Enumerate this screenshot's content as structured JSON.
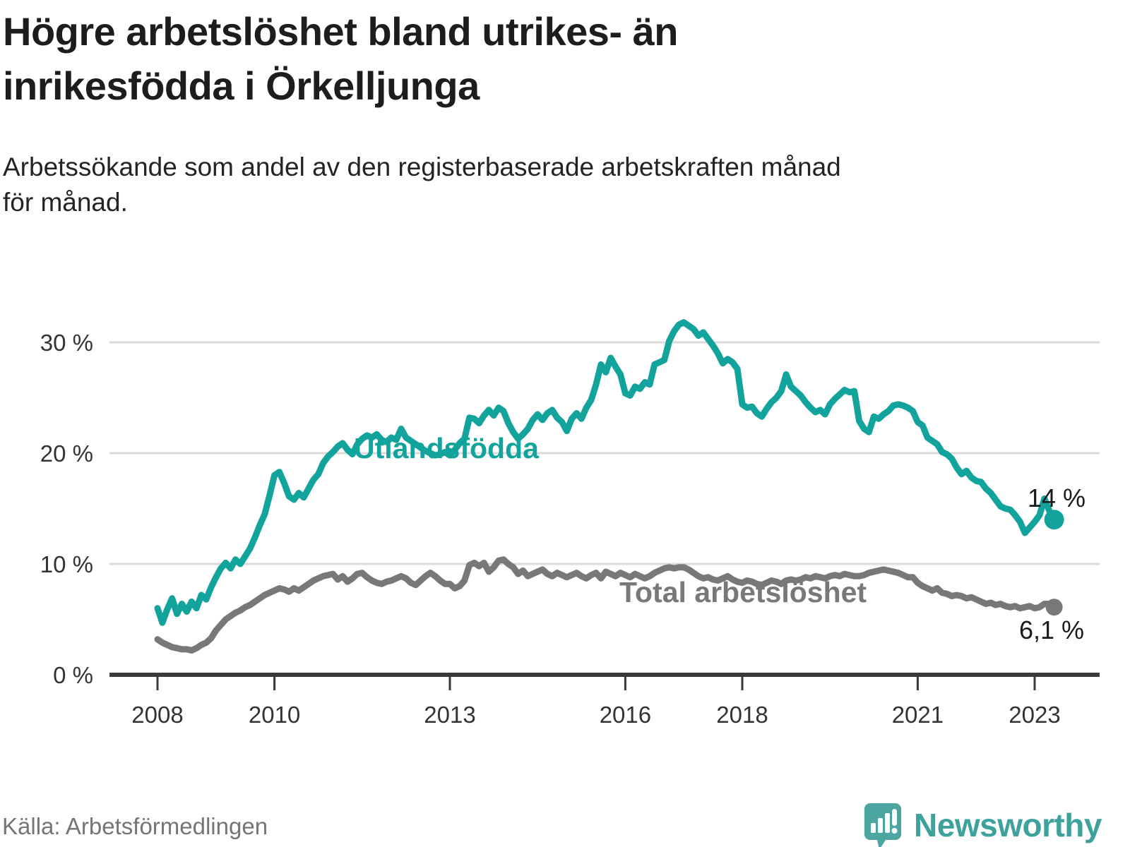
{
  "title": {
    "lines": [
      "Högre arbetslöshet bland utrikes- än",
      "inrikesfödda i Örkelljunga"
    ]
  },
  "subtitle": {
    "lines": [
      "Arbetssökande som andel av den registerbaserade arbetskraften månad",
      "för månad."
    ]
  },
  "footer": {
    "source": "Källa: Arbetsförmedlingen"
  },
  "brand": {
    "name": "Newsworthy",
    "icon": "map-pin-bar-chart-icon",
    "color": "#3da29b"
  },
  "chart_data": {
    "type": "line",
    "title": "Högre arbetslöshet bland utrikes- än inrikesfödda i Örkelljunga",
    "xlabel": "",
    "ylabel": "Arbetssökande som andel av den registerbaserade arbetskraften",
    "x_axis": {
      "ticks": [
        2008,
        2010,
        2013,
        2016,
        2018,
        2021,
        2023
      ]
    },
    "y_axis": {
      "tick_labels": [
        "0 %",
        "10 %",
        "20 %",
        "30 %"
      ],
      "tick_values": [
        0,
        10,
        20,
        30
      ],
      "ylim": [
        0,
        33.5
      ],
      "grid": true
    },
    "start_year": 2008,
    "frequency": "monthly",
    "series": [
      {
        "name": "Utlandsfödda",
        "color": "#11a39c",
        "end_label": "14 %",
        "values": [
          6.0,
          4.7,
          5.9,
          6.9,
          5.5,
          6.4,
          5.7,
          6.6,
          6.0,
          7.2,
          6.8,
          7.9,
          8.8,
          9.6,
          10.1,
          9.6,
          10.4,
          10.0,
          10.7,
          11.4,
          12.4,
          13.5,
          14.5,
          16.2,
          18.0,
          18.3,
          17.3,
          16.1,
          15.8,
          16.4,
          16.0,
          16.8,
          17.6,
          18.1,
          19.1,
          19.7,
          20.1,
          20.6,
          20.9,
          20.3,
          19.9,
          20.8,
          21.3,
          21.6,
          21.4,
          21.7,
          21.2,
          21.0,
          21.4,
          21.2,
          22.2,
          21.4,
          21.1,
          20.8,
          20.5,
          20.2,
          20.0,
          19.8,
          19.9,
          20.1,
          19.8,
          20.3,
          20.9,
          21.3,
          23.2,
          23.1,
          22.7,
          23.4,
          23.9,
          23.4,
          24.1,
          23.8,
          22.7,
          21.9,
          21.3,
          21.7,
          22.2,
          23.0,
          23.5,
          23.0,
          23.6,
          23.9,
          23.2,
          22.8,
          22.0,
          23.1,
          23.6,
          23.1,
          24.1,
          24.8,
          26.2,
          28.0,
          27.3,
          28.6,
          27.8,
          27.1,
          25.4,
          25.2,
          26.0,
          25.8,
          26.4,
          26.2,
          28.0,
          28.2,
          28.4,
          30.1,
          31.0,
          31.6,
          31.8,
          31.5,
          31.2,
          30.6,
          30.9,
          30.3,
          29.7,
          29.0,
          28.1,
          28.5,
          28.2,
          27.6,
          24.4,
          24.1,
          24.2,
          23.6,
          23.3,
          24.0,
          24.6,
          25.0,
          25.6,
          27.1,
          26.0,
          25.6,
          25.2,
          24.6,
          24.1,
          23.7,
          23.9,
          23.5,
          24.4,
          24.9,
          25.3,
          25.7,
          25.5,
          25.6,
          22.9,
          22.2,
          21.9,
          23.3,
          23.1,
          23.5,
          23.8,
          24.3,
          24.4,
          24.3,
          24.1,
          23.8,
          22.8,
          22.5,
          21.4,
          21.1,
          20.8,
          20.1,
          19.9,
          19.5,
          18.7,
          18.1,
          18.4,
          17.8,
          17.5,
          17.4,
          16.8,
          16.4,
          15.8,
          15.2,
          15.0,
          14.9,
          14.4,
          13.8,
          12.8,
          13.3,
          13.8,
          14.4,
          15.9,
          14.8,
          14.0
        ]
      },
      {
        "name": "Total arbetslöshet",
        "color": "#77787a",
        "end_label": "6,1 %",
        "values": [
          3.2,
          2.9,
          2.7,
          2.5,
          2.4,
          2.3,
          2.3,
          2.2,
          2.4,
          2.7,
          2.9,
          3.3,
          4.0,
          4.5,
          5.0,
          5.3,
          5.6,
          5.8,
          6.1,
          6.3,
          6.6,
          6.9,
          7.2,
          7.4,
          7.6,
          7.8,
          7.7,
          7.5,
          7.8,
          7.6,
          7.9,
          8.2,
          8.5,
          8.7,
          8.9,
          9.0,
          9.1,
          8.6,
          8.9,
          8.4,
          8.7,
          9.1,
          9.2,
          8.8,
          8.5,
          8.3,
          8.2,
          8.4,
          8.5,
          8.7,
          8.9,
          8.7,
          8.3,
          8.1,
          8.5,
          8.9,
          9.2,
          8.9,
          8.5,
          8.2,
          8.2,
          7.8,
          8.0,
          8.5,
          9.9,
          10.1,
          9.8,
          10.1,
          9.3,
          9.7,
          10.3,
          10.4,
          10.0,
          9.7,
          9.1,
          9.4,
          8.9,
          9.1,
          9.3,
          9.5,
          9.1,
          8.9,
          9.2,
          9.0,
          8.8,
          9.0,
          9.2,
          8.9,
          8.7,
          9.0,
          9.2,
          8.7,
          9.3,
          9.1,
          8.9,
          9.2,
          9.0,
          8.8,
          9.1,
          8.9,
          8.7,
          8.9,
          9.2,
          9.4,
          9.6,
          9.7,
          9.6,
          9.7,
          9.7,
          9.5,
          9.2,
          8.9,
          8.7,
          8.8,
          8.6,
          8.5,
          8.7,
          8.9,
          8.6,
          8.4,
          8.3,
          8.5,
          8.4,
          8.2,
          8.1,
          8.3,
          8.5,
          8.4,
          8.2,
          8.5,
          8.6,
          8.5,
          8.6,
          8.8,
          8.7,
          8.9,
          8.8,
          8.7,
          8.9,
          9.0,
          8.9,
          9.1,
          9.0,
          8.9,
          8.9,
          9.0,
          9.2,
          9.3,
          9.4,
          9.5,
          9.4,
          9.3,
          9.2,
          9.0,
          8.8,
          8.8,
          8.3,
          8.0,
          7.8,
          7.6,
          7.8,
          7.4,
          7.3,
          7.1,
          7.2,
          7.1,
          6.9,
          7.0,
          6.8,
          6.6,
          6.4,
          6.5,
          6.3,
          6.4,
          6.2,
          6.1,
          6.2,
          6.0,
          6.1,
          6.2,
          6.0,
          6.1,
          6.4,
          6.4,
          6.1
        ]
      }
    ]
  }
}
